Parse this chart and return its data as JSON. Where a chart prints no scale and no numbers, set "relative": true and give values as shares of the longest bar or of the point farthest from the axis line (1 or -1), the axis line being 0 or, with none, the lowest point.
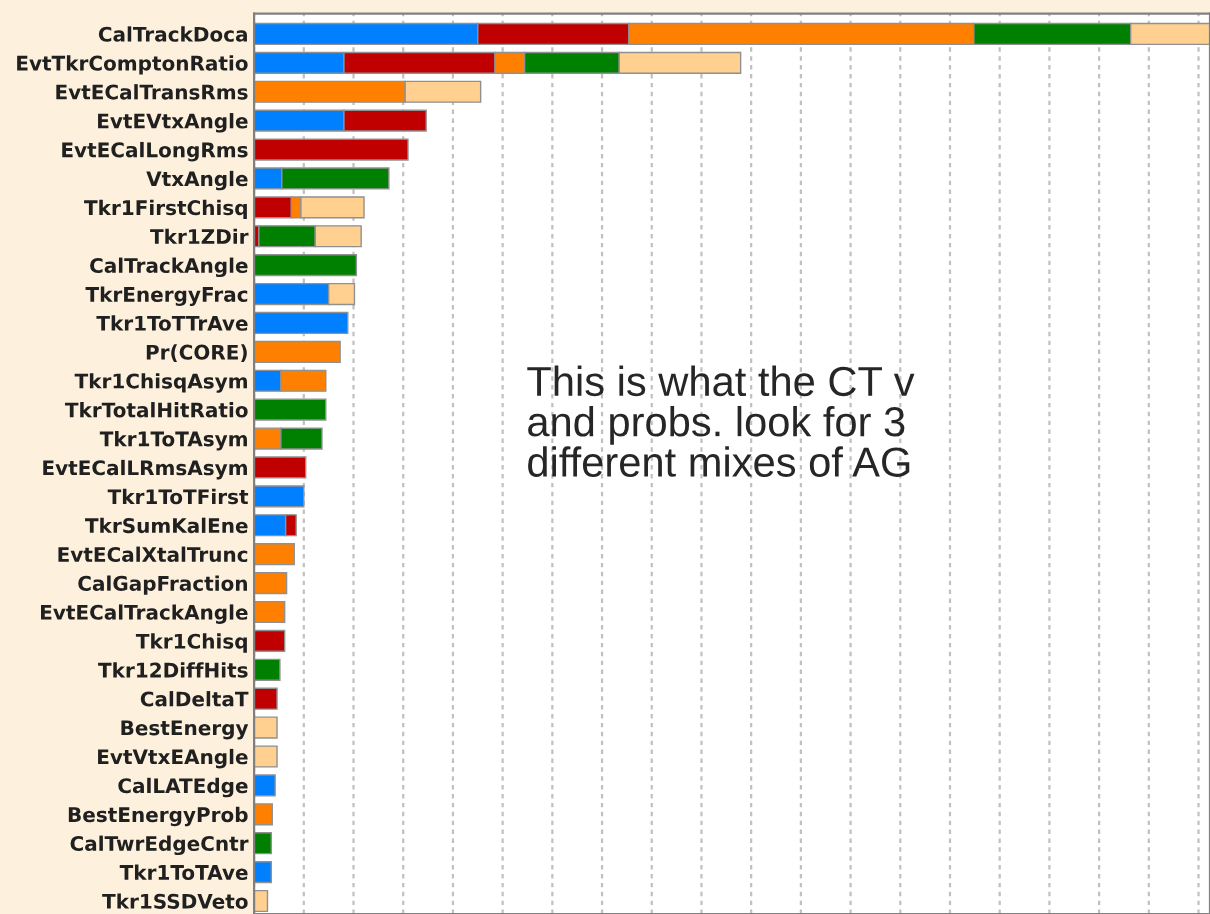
{
  "chart_data": {
    "type": "bar",
    "orientation": "horizontal",
    "stacked": true,
    "relative": true,
    "grid": "x",
    "tick_labels": "y",
    "categories": [
      "CalTrackDoca",
      "EvtTkrComptonRatio",
      "EvtECalTransRms",
      "EvtEVtxAngle",
      "EvtECalLongRms",
      "VtxAngle",
      "Tkr1FirstChisq",
      "Tkr1ZDir",
      "CalTrackAngle",
      "TkrEnergyFrac",
      "Tkr1ToTTrAve",
      "Pr(CORE)",
      "Tkr1ChisqAsym",
      "TkrTotalHitRatio",
      "Tkr1ToTAsym",
      "EvtECalLRmsAsym",
      "Tkr1ToTFirst",
      "TkrSumKalEne",
      "EvtECalXtalTrunc",
      "CalGapFraction",
      "EvtECalTrackAngle",
      "Tkr1Chisq",
      "Tkr12DiffHits",
      "CalDeltaT",
      "BestEnergy",
      "EvtVtxEAngle",
      "CalLATEdge",
      "BestEnergyProb",
      "CalTwrEdgeCntr",
      "Tkr1ToTAve",
      "Tkr1SSDVeto"
    ],
    "series": [
      {
        "color": "#0080ff",
        "values": [
          0.234,
          0.094,
          null,
          0.094,
          null,
          0.029,
          null,
          null,
          null,
          0.078,
          0.098,
          null,
          0.028,
          null,
          null,
          null,
          0.052,
          0.033,
          null,
          null,
          null,
          null,
          null,
          null,
          null,
          null,
          0.022,
          null,
          null,
          0.018,
          null
        ]
      },
      {
        "color": "#c00000",
        "values": [
          0.158,
          0.158,
          null,
          0.086,
          0.161,
          null,
          0.039,
          0.005,
          null,
          null,
          null,
          null,
          null,
          null,
          null,
          0.054,
          null,
          0.011,
          null,
          null,
          null,
          0.032,
          null,
          0.024,
          null,
          null,
          null,
          null,
          null,
          null,
          null
        ]
      },
      {
        "color": "#ff8000",
        "values": [
          0.361,
          0.031,
          0.158,
          null,
          null,
          null,
          0.01,
          null,
          null,
          null,
          null,
          0.09,
          0.047,
          null,
          0.028,
          null,
          null,
          null,
          0.042,
          0.034,
          0.032,
          null,
          null,
          null,
          null,
          null,
          null,
          0.019,
          null,
          null,
          null
        ]
      },
      {
        "color": "#008000",
        "values": [
          0.164,
          0.099,
          null,
          null,
          null,
          0.112,
          null,
          0.059,
          0.107,
          null,
          null,
          null,
          null,
          0.075,
          0.043,
          null,
          null,
          null,
          null,
          null,
          null,
          null,
          0.027,
          null,
          null,
          null,
          null,
          null,
          0.018,
          null,
          null
        ]
      },
      {
        "color": "#ffd090",
        "values": [
          0.083,
          0.127,
          0.079,
          null,
          null,
          null,
          0.066,
          0.048,
          null,
          0.027,
          null,
          null,
          null,
          null,
          null,
          null,
          null,
          null,
          null,
          null,
          null,
          null,
          null,
          null,
          0.024,
          0.024,
          null,
          null,
          null,
          null,
          0.014
        ]
      }
    ],
    "annotations": [
      "This is what the CT v\nand probs. look for 3\ndifferent mixes of AG"
    ]
  }
}
